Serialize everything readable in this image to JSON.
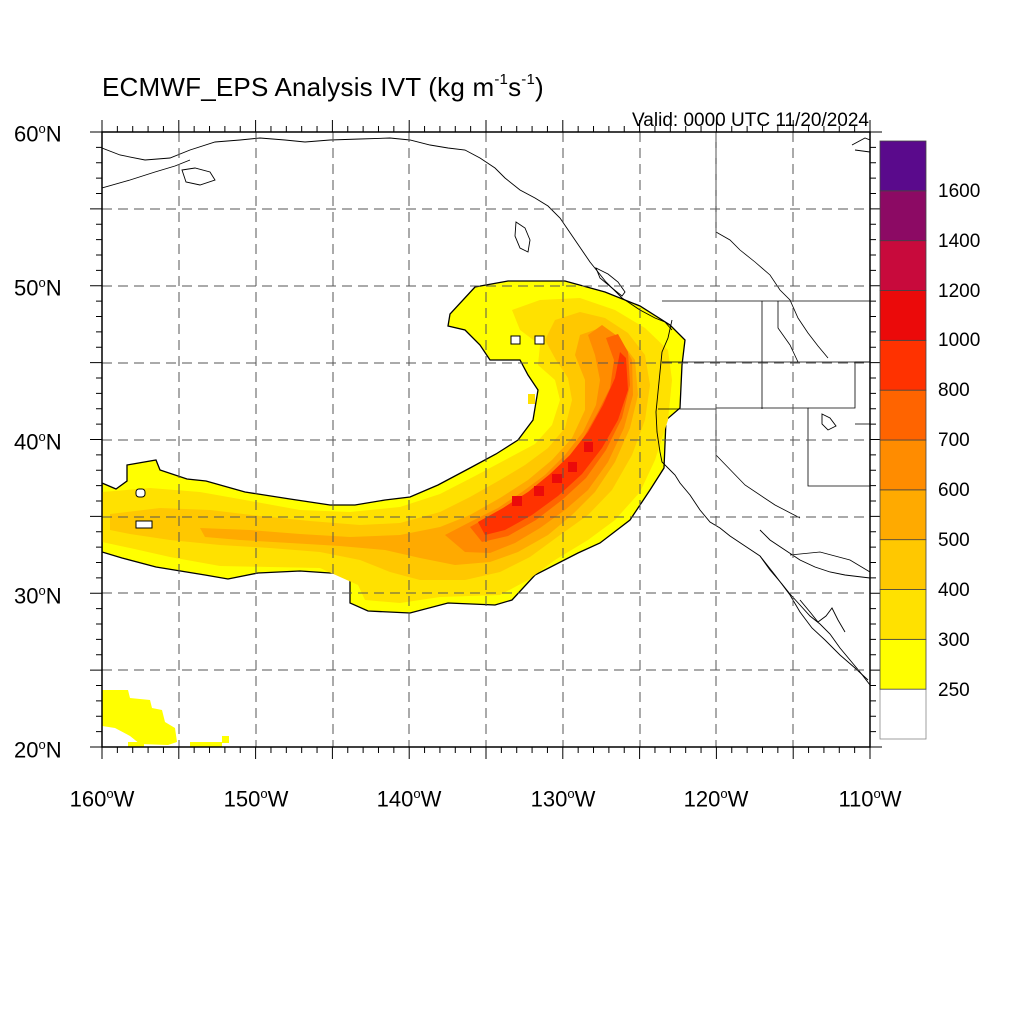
{
  "title": {
    "prefix": "ECMWF_EPS Analysis IVT (kg m",
    "exp1": "-1",
    "mid": "s",
    "exp2": "-1",
    "suffix": ")"
  },
  "valid_label": "Valid: 0000 UTC 11/20/2024",
  "map": {
    "lon_range": [
      -160,
      -110
    ],
    "lat_range": [
      20,
      60
    ],
    "lat_labels": [
      {
        "deg": "60",
        "hemi": "N"
      },
      {
        "deg": "50",
        "hemi": "N"
      },
      {
        "deg": "40",
        "hemi": "N"
      },
      {
        "deg": "30",
        "hemi": "N"
      },
      {
        "deg": "20",
        "hemi": "N"
      }
    ],
    "lon_labels": [
      {
        "deg": "160",
        "hemi": "W"
      },
      {
        "deg": "150",
        "hemi": "W"
      },
      {
        "deg": "140",
        "hemi": "W"
      },
      {
        "deg": "130",
        "hemi": "W"
      },
      {
        "deg": "120",
        "hemi": "W"
      },
      {
        "deg": "110",
        "hemi": "W"
      }
    ],
    "gridlines": "dashed every 5 degrees"
  },
  "colorbar": {
    "levels": [
      "250",
      "300",
      "400",
      "500",
      "600",
      "700",
      "800",
      "1000",
      "1200",
      "1400",
      "1600"
    ],
    "colors": [
      "#ffffff",
      "#ffff00",
      "#ffe100",
      "#ffc800",
      "#ffaa00",
      "#ff8c00",
      "#ff6400",
      "#ff3200",
      "#eb0a0a",
      "#c80a3c",
      "#8c0a64",
      "#5a0a8c"
    ]
  },
  "chart_data": {
    "type": "heatmap",
    "title": "ECMWF_EPS Analysis IVT (kg m-1s-1)",
    "subtitle": "Valid: 0000 UTC 11/20/2024",
    "xlim": [
      -160,
      -110
    ],
    "ylim": [
      20,
      60
    ],
    "threshold_min": 250,
    "feature": "atmospheric river",
    "core_points": [
      {
        "lon": -159,
        "lat": 35.0,
        "ivt": 330
      },
      {
        "lon": -154,
        "lat": 34.5,
        "ivt": 380
      },
      {
        "lon": -148,
        "lat": 34.3,
        "ivt": 420
      },
      {
        "lon": -142,
        "lat": 34.0,
        "ivt": 440
      },
      {
        "lon": -137,
        "lat": 34.3,
        "ivt": 550
      },
      {
        "lon": -134,
        "lat": 35.0,
        "ivt": 720
      },
      {
        "lon": -130,
        "lat": 36.8,
        "ivt": 830
      },
      {
        "lon": -127.5,
        "lat": 39.0,
        "ivt": 880
      },
      {
        "lon": -126,
        "lat": 41.5,
        "ivt": 800
      },
      {
        "lon": -125,
        "lat": 44.0,
        "ivt": 760
      },
      {
        "lon": -126.5,
        "lat": 46.8,
        "ivt": 650
      },
      {
        "lon": -129,
        "lat": 48.5,
        "ivt": 520
      }
    ]
  }
}
